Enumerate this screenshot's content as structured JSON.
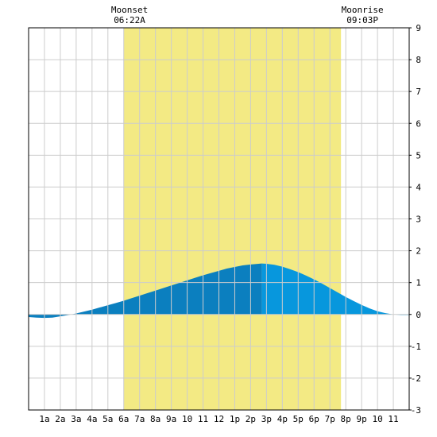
{
  "chart_data": {
    "type": "area",
    "x_unit": "hour of day",
    "xlim": [
      0,
      24
    ],
    "ylim": [
      -3,
      9
    ],
    "grid": true,
    "x_ticks": [
      {
        "x": 1,
        "label": "1a"
      },
      {
        "x": 2,
        "label": "2a"
      },
      {
        "x": 3,
        "label": "3a"
      },
      {
        "x": 4,
        "label": "4a"
      },
      {
        "x": 5,
        "label": "5a"
      },
      {
        "x": 6,
        "label": "6a"
      },
      {
        "x": 7,
        "label": "7a"
      },
      {
        "x": 8,
        "label": "8a"
      },
      {
        "x": 9,
        "label": "9a"
      },
      {
        "x": 10,
        "label": "10"
      },
      {
        "x": 11,
        "label": "11"
      },
      {
        "x": 12,
        "label": "12"
      },
      {
        "x": 13,
        "label": "1p"
      },
      {
        "x": 14,
        "label": "2p"
      },
      {
        "x": 15,
        "label": "3p"
      },
      {
        "x": 16,
        "label": "4p"
      },
      {
        "x": 17,
        "label": "5p"
      },
      {
        "x": 18,
        "label": "6p"
      },
      {
        "x": 19,
        "label": "7p"
      },
      {
        "x": 20,
        "label": "8p"
      },
      {
        "x": 21,
        "label": "9p"
      },
      {
        "x": 22,
        "label": "10"
      },
      {
        "x": 23,
        "label": "11"
      }
    ],
    "y_ticks": [
      -3,
      -2,
      -1,
      0,
      1,
      2,
      3,
      4,
      5,
      6,
      7,
      8,
      9
    ],
    "events": [
      {
        "label": "Moonset",
        "time": "06:22A",
        "hour": 6.367
      },
      {
        "label": "Moonrise",
        "time": "09:03P",
        "hour": 21.05
      }
    ],
    "shaded_period": {
      "start_hour": 6.0,
      "end_hour": 19.7
    },
    "series": [
      {
        "color_before_peak": "#0b7fbf",
        "color_after_peak": "#0797dd",
        "peak_hour": 14.7,
        "x": [
          0,
          0.5,
          1,
          1.5,
          2,
          2.5,
          3,
          3.5,
          4,
          4.5,
          5,
          5.5,
          6,
          6.5,
          7,
          7.5,
          8,
          8.5,
          9,
          9.5,
          10,
          10.5,
          11,
          11.5,
          12,
          12.5,
          13,
          13.5,
          14,
          14.5,
          14.7,
          15,
          15.5,
          16,
          16.5,
          17,
          17.5,
          18,
          18.5,
          19,
          19.5,
          20,
          20.5,
          21,
          21.5,
          22,
          22.5,
          23,
          23.5,
          24
        ],
        "y": [
          -0.08,
          -0.1,
          -0.11,
          -0.1,
          -0.06,
          -0.02,
          0.03,
          0.09,
          0.15,
          0.22,
          0.29,
          0.36,
          0.43,
          0.51,
          0.59,
          0.67,
          0.75,
          0.83,
          0.91,
          0.99,
          1.07,
          1.15,
          1.23,
          1.3,
          1.37,
          1.44,
          1.49,
          1.54,
          1.57,
          1.59,
          1.6,
          1.59,
          1.56,
          1.5,
          1.42,
          1.33,
          1.22,
          1.1,
          0.97,
          0.83,
          0.69,
          0.55,
          0.42,
          0.3,
          0.19,
          0.1,
          0.04,
          0.0,
          -0.02,
          -0.02
        ]
      }
    ]
  },
  "colors": {
    "background": "#ffffff",
    "grid": "#cccccc",
    "shade": "#f3ea84",
    "axis": "#000000"
  }
}
